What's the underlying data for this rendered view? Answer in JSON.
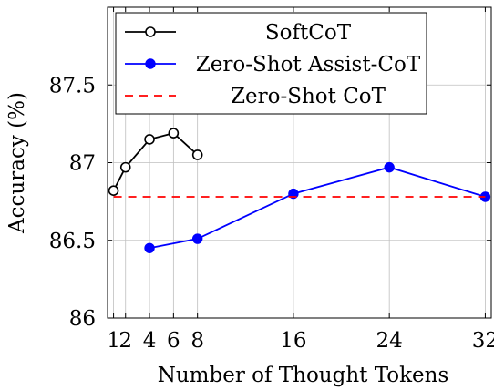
{
  "chart_data": {
    "type": "line",
    "title": "",
    "xlabel": "Number of Thought Tokens",
    "ylabel": "Accuracy (%)",
    "xlim": [
      0.5,
      32.5
    ],
    "ylim": [
      86,
      88
    ],
    "x_ticks": [
      1,
      2,
      4,
      6,
      8,
      16,
      24,
      32
    ],
    "x_tick_labels": [
      "1",
      "2",
      "4",
      "6",
      "8",
      "16",
      "24",
      "32"
    ],
    "y_ticks": [
      86,
      86.5,
      87,
      87.5
    ],
    "y_tick_labels": [
      "86",
      "86.5",
      "87",
      "87.5"
    ],
    "grid": true,
    "legend_position": "top-left",
    "series": [
      {
        "name": "SoftCoT",
        "color": "#000000",
        "marker": "open-circle",
        "x": [
          1,
          2,
          4,
          6,
          8
        ],
        "y": [
          86.82,
          86.97,
          87.15,
          87.19,
          87.05
        ]
      },
      {
        "name": "Zero-Shot Assist-CoT",
        "color": "#0000ff",
        "marker": "filled-circle",
        "x": [
          4,
          8,
          16,
          24,
          32
        ],
        "y": [
          86.45,
          86.51,
          86.8,
          86.97,
          86.78
        ]
      },
      {
        "name": "Zero-Shot CoT",
        "color": "#ff0000",
        "marker": "none",
        "dashed": true,
        "x": [
          1,
          32
        ],
        "y": [
          86.78,
          86.78
        ]
      }
    ]
  }
}
